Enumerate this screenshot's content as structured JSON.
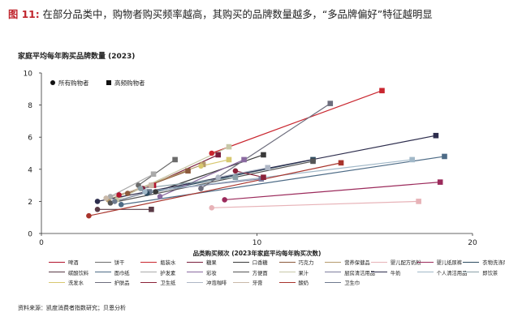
{
  "figure": {
    "label": "图 11:",
    "text": "在部分品类中，购物者购买频率越高，其购买的品牌数量越多，“多品牌偏好”特征越明显"
  },
  "source": "资料来源：凯度消费者指数研究；贝恩分析",
  "chart_data": {
    "type": "scatter",
    "title": "家庭平均每年购买品牌数量 (2023)",
    "xlabel": "品类购买频次 (2023年家庭平均每年购买次数)",
    "ylabel": "",
    "xlim": [
      0,
      20
    ],
    "ylim": [
      0,
      10
    ],
    "xticks": [
      0,
      10,
      20
    ],
    "yticks": [
      0,
      2,
      4,
      6,
      8,
      10
    ],
    "legend_markers": [
      {
        "name": "所有购物者",
        "marker": "circle"
      },
      {
        "name": "高频购物者",
        "marker": "square"
      }
    ],
    "series": [
      {
        "name": "啤酒",
        "color": "#b3122c",
        "all": [
          3.6,
          2.4
        ],
        "high": [
          5.2,
          3.0
        ]
      },
      {
        "name": "饼干",
        "color": "#6b6b6b",
        "all": [
          4.5,
          3.0
        ],
        "high": [
          6.2,
          4.6
        ]
      },
      {
        "name": "瓶装水",
        "color": "#c9262f",
        "all": [
          7.9,
          5.0
        ],
        "high": [
          15.8,
          8.9
        ]
      },
      {
        "name": "糖果",
        "color": "#7a1e3c",
        "all": [
          4.7,
          2.8
        ],
        "high": [
          8.2,
          4.9
        ]
      },
      {
        "name": "口香糖",
        "color": "#3a3a3a",
        "all": [
          5.3,
          2.6
        ],
        "high": [
          10.3,
          4.9
        ]
      },
      {
        "name": "巧克力",
        "color": "#8c5a3c",
        "all": [
          4.0,
          2.5
        ],
        "high": [
          6.8,
          3.9
        ]
      },
      {
        "name": "营养保健品",
        "color": "#b59a6d",
        "all": [
          3.1,
          2.1
        ],
        "high": [
          7.5,
          4.3
        ]
      },
      {
        "name": "婴儿配方奶粉",
        "color": "#e7b2b7",
        "all": [
          7.9,
          1.6
        ],
        "high": [
          17.5,
          2.0
        ]
      },
      {
        "name": "婴儿纸尿裤",
        "color": "#9b2a5b",
        "all": [
          8.5,
          2.1
        ],
        "high": [
          18.5,
          3.2
        ]
      },
      {
        "name": "衣物洗涤用品",
        "color": "#2c4b60",
        "all": [
          4.9,
          2.5
        ],
        "high": [
          12.6,
          4.6
        ]
      },
      {
        "name": "碳酸饮料",
        "color": "#5a3a46",
        "all": [
          2.6,
          1.5
        ],
        "high": [
          5.1,
          1.5
        ]
      },
      {
        "name": "面巾纸",
        "color": "#4d6b86",
        "all": [
          3.7,
          1.8
        ],
        "high": [
          18.7,
          4.8
        ]
      },
      {
        "name": "护发素",
        "color": "#aaaaaa",
        "all": [
          3.2,
          2.3
        ],
        "high": [
          5.2,
          3.7
        ]
      },
      {
        "name": "彩妆",
        "color": "#8a6aa0",
        "all": [
          5.5,
          2.3
        ],
        "high": [
          9.4,
          4.6
        ]
      },
      {
        "name": "方便面",
        "color": "#555555",
        "all": [
          3.2,
          1.9
        ],
        "high": [
          12.6,
          4.5
        ]
      },
      {
        "name": "果汁",
        "color": "#c8c8a8",
        "all": [
          3.5,
          2.1
        ],
        "high": [
          8.7,
          5.4
        ]
      },
      {
        "name": "厨房清洁用品",
        "color": "#7e7e9e",
        "all": [
          4.8,
          2.6
        ],
        "high": [
          10.2,
          3.4
        ]
      },
      {
        "name": "牛奶",
        "color": "#2d2d4d",
        "all": [
          2.6,
          2.0
        ],
        "high": [
          18.3,
          6.1
        ]
      },
      {
        "name": "个人清洁用品",
        "color": "#a1b8c8",
        "all": [
          4.8,
          2.6
        ],
        "high": [
          17.2,
          4.6
        ]
      },
      {
        "name": "即饮茶",
        "color": "#8aa0a8",
        "all": [
          4.6,
          2.8
        ],
        "high": [
          9.0,
          3.5
        ]
      },
      {
        "name": "洗发水",
        "color": "#d8c870",
        "all": [
          7.4,
          4.2
        ],
        "high": [
          8.7,
          4.6
        ]
      },
      {
        "name": "护肤品",
        "color": "#6d6d7d",
        "all": [
          7.4,
          2.8
        ],
        "high": [
          13.4,
          8.1
        ]
      },
      {
        "name": "卫生纸",
        "color": "#8b2239",
        "all": [
          9.0,
          3.9
        ],
        "high": [
          10.3,
          3.5
        ]
      },
      {
        "name": "冲泡咖啡",
        "color": "#aeb7c6",
        "all": [
          8.2,
          3.5
        ],
        "high": [
          10.5,
          4.1
        ]
      },
      {
        "name": "牙膏",
        "color": "#c9b9a9",
        "all": [
          3.0,
          2.2
        ],
        "high": [
          5.1,
          3.0
        ]
      },
      {
        "name": "酸奶",
        "color": "#a8342c",
        "all": [
          2.2,
          1.1
        ],
        "high": [
          13.9,
          4.4
        ]
      },
      {
        "name": "卫生巾",
        "color": "#6e7a8e",
        "all": [
          3.4,
          2.0
        ],
        "high": [
          5.0,
          2.6
        ]
      }
    ]
  }
}
